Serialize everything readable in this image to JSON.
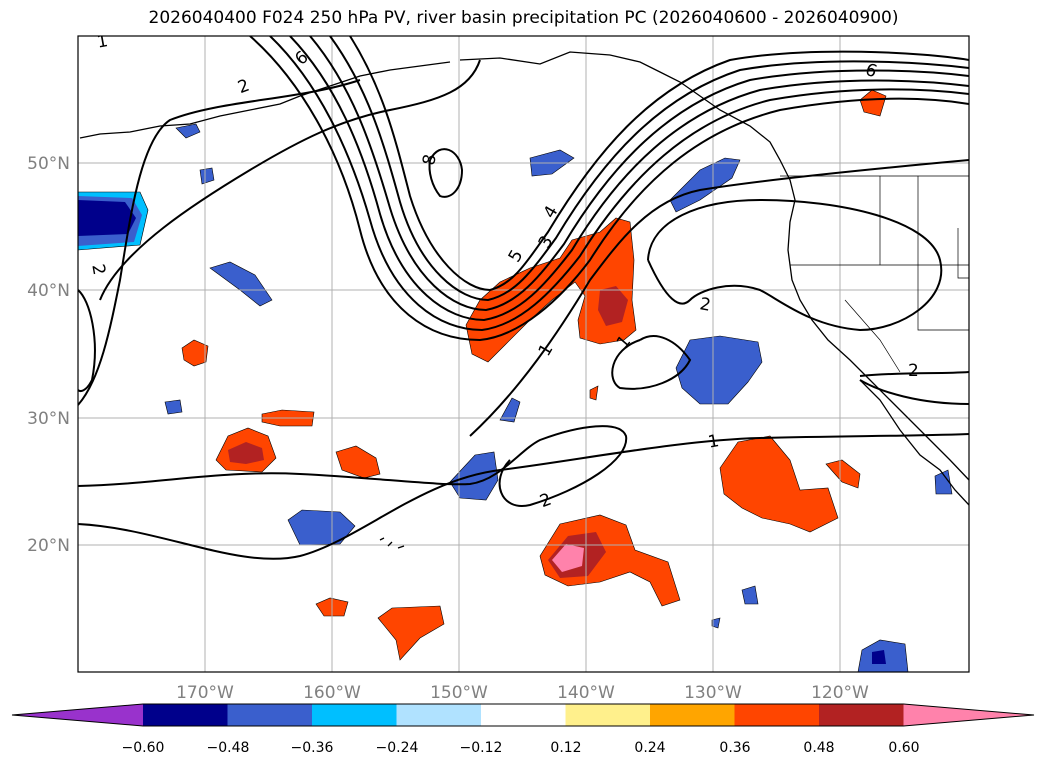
{
  "title": "2026040400 F024 250 hPa PV, river basin precipitation PC (2026040600 - 2026040900)",
  "map": {
    "lat_labels": [
      "50°N",
      "40°N",
      "30°N",
      "20°N"
    ],
    "lon_labels": [
      "170°W",
      "160°W",
      "150°W",
      "140°W",
      "130°W",
      "120°W"
    ],
    "contour_labels": [
      "1",
      "2",
      "6",
      "8",
      "5",
      "4",
      "3",
      "1",
      "2",
      "1",
      "2",
      "2",
      "6",
      "1",
      "2"
    ]
  },
  "colorbar": {
    "ticks": [
      "−0.60",
      "−0.48",
      "−0.36",
      "−0.24",
      "−0.12",
      "0.12",
      "0.24",
      "0.36",
      "0.48",
      "0.60"
    ],
    "colors": [
      "#9932cc",
      "#00008b",
      "#3a5fcd",
      "#00bfff",
      "#b0e2ff",
      "#ffffff",
      "#fff08c",
      "#ffa500",
      "#ff4500",
      "#b22222",
      "#ff82ab"
    ]
  }
}
